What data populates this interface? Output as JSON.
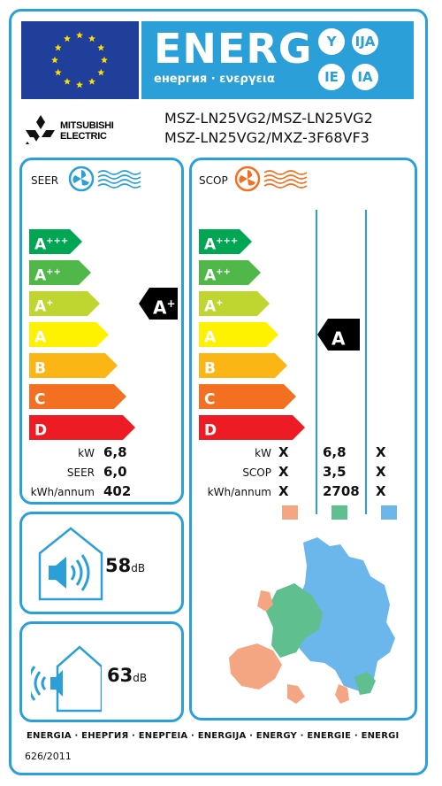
{
  "header": {
    "energy_word": "ENERG",
    "energy_subtitle": "енергия · ενεργεια",
    "lang_suffixes": [
      "Y",
      "IJA",
      "IE",
      "IA"
    ]
  },
  "supplier": {
    "brand_line1": "MITSUBISHI",
    "brand_line2": "ELECTRIC"
  },
  "models": {
    "line1": "MSZ-LN25VG2/MSZ-LN25VG2",
    "line2": "MSZ-LN25VG2/MXZ-3F68VF3"
  },
  "scale": [
    {
      "letter": "A",
      "plus": "+++",
      "color": "#00a651"
    },
    {
      "letter": "A",
      "plus": "++",
      "color": "#50b848"
    },
    {
      "letter": "A",
      "plus": "+",
      "color": "#bed62f"
    },
    {
      "letter": "A",
      "plus": "",
      "color": "#fff200"
    },
    {
      "letter": "B",
      "plus": "",
      "color": "#fbb616"
    },
    {
      "letter": "C",
      "plus": "",
      "color": "#f37021"
    },
    {
      "letter": "D",
      "plus": "",
      "color": "#ed1c24"
    }
  ],
  "cooling": {
    "title": "SEER",
    "rating_letter": "A",
    "rating_plus": "+",
    "rating_index": 2,
    "rows": [
      {
        "label": "kW",
        "value": "6,8"
      },
      {
        "label": "SEER",
        "value": "6,0"
      },
      {
        "label": "kWh/annum",
        "value": "402"
      }
    ]
  },
  "heating": {
    "title": "SCOP",
    "rating_letter": "A",
    "rating_plus": "",
    "rating_index": 3,
    "rows": [
      {
        "label": "kW",
        "cold": "X",
        "average": "6,8",
        "warm": "X"
      },
      {
        "label": "SCOP",
        "cold": "X",
        "average": "3,5",
        "warm": "X"
      },
      {
        "label": "kWh/annum",
        "cold": "X",
        "average": "2708",
        "warm": "X"
      }
    ],
    "zone_colors": {
      "cold": "#f4a582",
      "average": "#5fbf8f",
      "warm": "#6bb6ea"
    }
  },
  "noise": {
    "indoor_value": "58",
    "outdoor_value": "63",
    "unit": "dB"
  },
  "footer": {
    "languages": "ENERGIA · ЕНЕРГИЯ · ΕΝΕΡΓΕΙΑ · ENERGIJA · ENERGY · ENERGIE · ENERGI",
    "regulation": "626/2011"
  }
}
